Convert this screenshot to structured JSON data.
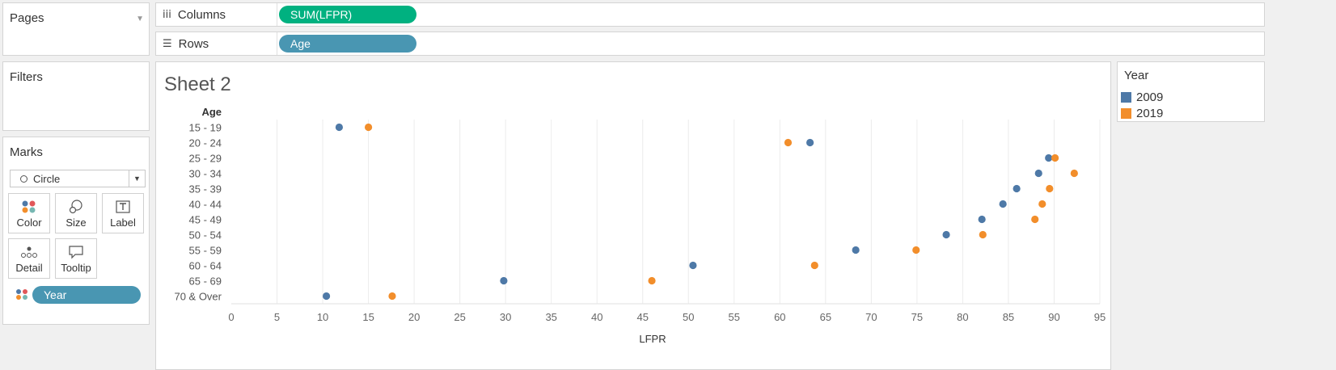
{
  "pages_card": {
    "title": "Pages"
  },
  "filters_card": {
    "title": "Filters"
  },
  "marks_card": {
    "title": "Marks",
    "mark_type": "Circle",
    "buttons": [
      {
        "label": "Color",
        "icon": "color-dots-icon"
      },
      {
        "label": "Size",
        "icon": "size-circles-icon"
      },
      {
        "label": "Label",
        "icon": "label-t-icon"
      },
      {
        "label": "Detail",
        "icon": "detail-dots-icon"
      },
      {
        "label": "Tooltip",
        "icon": "tooltip-bubble-icon"
      }
    ],
    "field_pill": {
      "label": "Year",
      "icon": "color-dots-icon"
    }
  },
  "shelves": {
    "columns": {
      "label": "Columns",
      "icon": "columns-icon",
      "pill": "SUM(LFPR)",
      "pill_color": "#00b180"
    },
    "rows": {
      "label": "Rows",
      "icon": "rows-icon",
      "pill": "Age",
      "pill_color": "#4996b2"
    }
  },
  "sheet": {
    "title": "Sheet 2"
  },
  "legend": {
    "title": "Year",
    "items": [
      {
        "label": "2009",
        "color": "#4e79a7"
      },
      {
        "label": "2019",
        "color": "#f28e2b"
      }
    ]
  },
  "chart_data": {
    "type": "scatter",
    "title": "Sheet 2",
    "xlabel": "LFPR",
    "ylabel": "Age",
    "xlim": [
      0,
      95
    ],
    "x_ticks": [
      0,
      5,
      10,
      15,
      20,
      25,
      30,
      35,
      40,
      45,
      50,
      55,
      60,
      65,
      70,
      75,
      80,
      85,
      90,
      95
    ],
    "categories": [
      "15 - 19",
      "20 - 24",
      "25 - 29",
      "30 - 34",
      "35 - 39",
      "40 - 44",
      "45 - 49",
      "50 - 54",
      "55 - 59",
      "60 - 64",
      "65 - 69",
      "70 & Over"
    ],
    "grid": "vertical",
    "legend": "right",
    "series": [
      {
        "name": "2009",
        "color": "#4e79a7",
        "values": [
          11.8,
          63.3,
          89.4,
          88.3,
          85.9,
          84.4,
          82.1,
          78.2,
          68.3,
          50.5,
          29.8,
          10.4
        ]
      },
      {
        "name": "2019",
        "color": "#f28e2b",
        "values": [
          15.0,
          60.9,
          90.1,
          92.2,
          89.5,
          88.7,
          87.9,
          82.2,
          74.9,
          63.8,
          46.0,
          17.6
        ]
      }
    ]
  }
}
